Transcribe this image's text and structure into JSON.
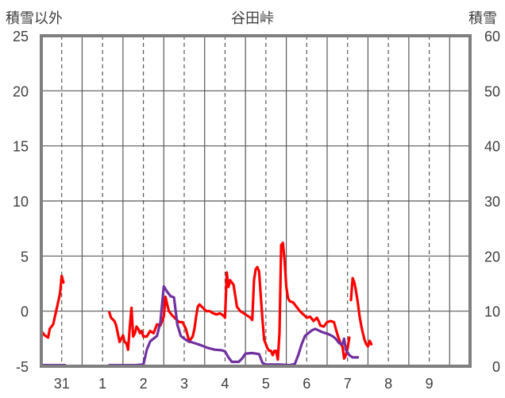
{
  "chart_data": {
    "type": "line",
    "title": "谷田峠",
    "left_axis_label": "積雪以外",
    "right_axis_label": "積雪",
    "left_axis": {
      "min": -5,
      "max": 25,
      "ticks": [
        -5,
        0,
        5,
        10,
        15,
        20,
        25
      ]
    },
    "right_axis": {
      "min": 0,
      "max": 60,
      "ticks": [
        0,
        10,
        20,
        30,
        40,
        50,
        60
      ]
    },
    "x_axis": {
      "unit": "hours since 30th 12:00",
      "min": 0,
      "max": 252,
      "day_ticks": [
        {
          "label": "31",
          "x": 12
        },
        {
          "label": "1",
          "x": 36
        },
        {
          "label": "2",
          "x": 60
        },
        {
          "label": "3",
          "x": 84
        },
        {
          "label": "4",
          "x": 108
        },
        {
          "label": "5",
          "x": 132
        },
        {
          "label": "6",
          "x": 156
        },
        {
          "label": "7",
          "x": 180
        },
        {
          "label": "8",
          "x": 204
        },
        {
          "label": "9",
          "x": 228
        }
      ]
    },
    "grid": {
      "vertical_dashed_at_day_ticks": true,
      "vertical_solid_at_midnight": true,
      "horizontal_solid": true
    },
    "series": [
      {
        "color": "#ff0000",
        "axis": "left",
        "segments": [
          [
            [
              0,
              -1.8
            ],
            [
              2,
              -2.2
            ],
            [
              4,
              -2.4
            ],
            [
              5,
              -1.6
            ],
            [
              7,
              -1.2
            ],
            [
              9,
              0.2
            ],
            [
              11,
              1.6
            ],
            [
              12,
              3.2
            ],
            [
              13,
              2.6
            ]
          ],
          [
            [
              40,
              -0.1
            ],
            [
              41,
              -0.6
            ],
            [
              43,
              -0.9
            ],
            [
              44,
              -1.3
            ],
            [
              46,
              -2.8
            ],
            [
              48,
              -2.2
            ],
            [
              49,
              -2.8
            ],
            [
              50,
              -2.9
            ],
            [
              51,
              -3.5
            ],
            [
              52,
              -1.5
            ],
            [
              53,
              0.3
            ],
            [
              54,
              -2.3
            ],
            [
              55,
              -2.0
            ],
            [
              56,
              -1.4
            ],
            [
              57,
              -1.6
            ],
            [
              58,
              -2.0
            ],
            [
              59,
              -1.8
            ],
            [
              60,
              -2.3
            ],
            [
              62,
              -2.3
            ],
            [
              64,
              -1.8
            ],
            [
              66,
              -2.0
            ],
            [
              68,
              -1.2
            ],
            [
              70,
              -1.3
            ],
            [
              72,
              -0.5
            ],
            [
              73,
              1.3
            ],
            [
              74,
              0.6
            ],
            [
              75,
              0.0
            ],
            [
              77,
              -0.4
            ],
            [
              79,
              -0.7
            ],
            [
              81,
              -1.0
            ],
            [
              83,
              -1.0
            ],
            [
              85,
              -1.6
            ],
            [
              86,
              -2.2
            ],
            [
              87,
              -2.8
            ],
            [
              88,
              -2.5
            ],
            [
              89,
              -2.3
            ],
            [
              90,
              -1.6
            ],
            [
              91,
              -0.5
            ],
            [
              92,
              0.4
            ],
            [
              93,
              0.6
            ],
            [
              95,
              0.3
            ],
            [
              97,
              0.0
            ],
            [
              99,
              0.0
            ],
            [
              101,
              -0.2
            ],
            [
              103,
              -0.3
            ],
            [
              105,
              -0.2
            ],
            [
              107,
              -0.4
            ],
            [
              108,
              -0.6
            ],
            [
              109,
              3.5
            ],
            [
              110,
              2.2
            ],
            [
              111,
              2.8
            ],
            [
              112,
              2.6
            ],
            [
              113,
              2.4
            ],
            [
              114,
              1.4
            ],
            [
              115,
              0.4
            ],
            [
              117,
              0.0
            ],
            [
              119,
              -0.2
            ],
            [
              121,
              -0.4
            ],
            [
              123,
              -0.6
            ],
            [
              124,
              -0.8
            ],
            [
              125,
              2.8
            ],
            [
              126,
              3.8
            ],
            [
              127,
              4.0
            ],
            [
              128,
              3.6
            ],
            [
              129,
              1.4
            ],
            [
              130,
              -0.8
            ],
            [
              131,
              -2.6
            ],
            [
              132,
              -3.0
            ],
            [
              133,
              -3.4
            ],
            [
              134,
              -3.6
            ],
            [
              135,
              -3.6
            ],
            [
              136,
              -4.0
            ],
            [
              137,
              -3.6
            ],
            [
              138,
              -3.6
            ],
            [
              139,
              -4.4
            ],
            [
              140,
              -2.0
            ],
            [
              141,
              6.0
            ],
            [
              142,
              6.2
            ],
            [
              143,
              4.6
            ],
            [
              144,
              2.2
            ],
            [
              145,
              1.2
            ],
            [
              146,
              0.9
            ],
            [
              148,
              0.8
            ],
            [
              150,
              0.4
            ],
            [
              152,
              0.0
            ],
            [
              154,
              -0.3
            ],
            [
              156,
              -0.6
            ],
            [
              158,
              -0.5
            ],
            [
              160,
              -0.9
            ],
            [
              162,
              -0.6
            ],
            [
              163,
              -0.9
            ],
            [
              164,
              -1.3
            ],
            [
              166,
              -1.4
            ],
            [
              168,
              -1.0
            ],
            [
              170,
              -0.9
            ],
            [
              172,
              -1.0
            ],
            [
              174,
              -2.1
            ],
            [
              176,
              -3.0
            ],
            [
              177,
              -3.2
            ],
            [
              178,
              -4.3
            ],
            [
              179,
              -4.0
            ],
            [
              180,
              -3.4
            ],
            [
              181,
              -2.4
            ]
          ],
          [
            [
              182,
              1.0
            ],
            [
              183,
              3.0
            ],
            [
              184,
              2.6
            ],
            [
              185,
              1.8
            ],
            [
              186,
              0.8
            ],
            [
              187,
              -0.4
            ],
            [
              188,
              -1.3
            ],
            [
              189,
              -2.0
            ],
            [
              190,
              -2.6
            ],
            [
              191,
              -3.0
            ],
            [
              192,
              -3.2
            ],
            [
              193,
              -2.7
            ],
            [
              194,
              -3.0
            ]
          ]
        ]
      },
      {
        "color": "#7030a0",
        "axis": "right",
        "segments": [
          [
            [
              0,
              0.2
            ],
            [
              4,
              0.2
            ],
            [
              8,
              0.2
            ],
            [
              12,
              0.2
            ],
            [
              14,
              0.2
            ]
          ],
          [
            [
              40,
              0.2
            ],
            [
              45,
              0.2
            ],
            [
              50,
              0.2
            ],
            [
              55,
              0.2
            ],
            [
              60,
              0.3
            ],
            [
              62,
              3.0
            ],
            [
              64,
              4.5
            ],
            [
              66,
              5.0
            ],
            [
              68,
              5.5
            ],
            [
              70,
              8.0
            ],
            [
              72,
              14.5
            ],
            [
              74,
              13.5
            ],
            [
              76,
              12.7
            ],
            [
              78,
              12.5
            ],
            [
              80,
              7.5
            ],
            [
              81,
              6.5
            ],
            [
              82,
              5.5
            ],
            [
              84,
              5.0
            ],
            [
              86,
              4.6
            ],
            [
              90,
              4.2
            ],
            [
              94,
              3.8
            ],
            [
              98,
              3.3
            ],
            [
              102,
              3.0
            ],
            [
              106,
              2.9
            ],
            [
              108,
              2.7
            ],
            [
              110,
              1.6
            ],
            [
              112,
              0.8
            ],
            [
              114,
              0.8
            ],
            [
              116,
              0.8
            ],
            [
              118,
              1.4
            ],
            [
              120,
              2.3
            ],
            [
              124,
              2.4
            ],
            [
              128,
              2.2
            ],
            [
              130,
              0.6
            ],
            [
              132,
              0.3
            ],
            [
              136,
              0.3
            ],
            [
              140,
              0.3
            ],
            [
              146,
              0.2
            ],
            [
              149,
              0.4
            ],
            [
              151,
              2.0
            ],
            [
              153,
              4.0
            ],
            [
              155,
              5.5
            ],
            [
              157,
              6.0
            ],
            [
              159,
              6.5
            ],
            [
              161,
              6.8
            ],
            [
              163,
              6.5
            ],
            [
              165,
              6.2
            ],
            [
              167,
              6.0
            ],
            [
              169,
              5.8
            ],
            [
              171,
              5.5
            ],
            [
              173,
              5.0
            ],
            [
              175,
              4.2
            ],
            [
              177,
              4.0
            ],
            [
              178,
              5.0
            ],
            [
              179,
              3.0
            ],
            [
              181,
              2.0
            ],
            [
              183,
              1.6
            ],
            [
              185,
              1.6
            ],
            [
              186,
              1.6
            ]
          ]
        ]
      }
    ]
  }
}
